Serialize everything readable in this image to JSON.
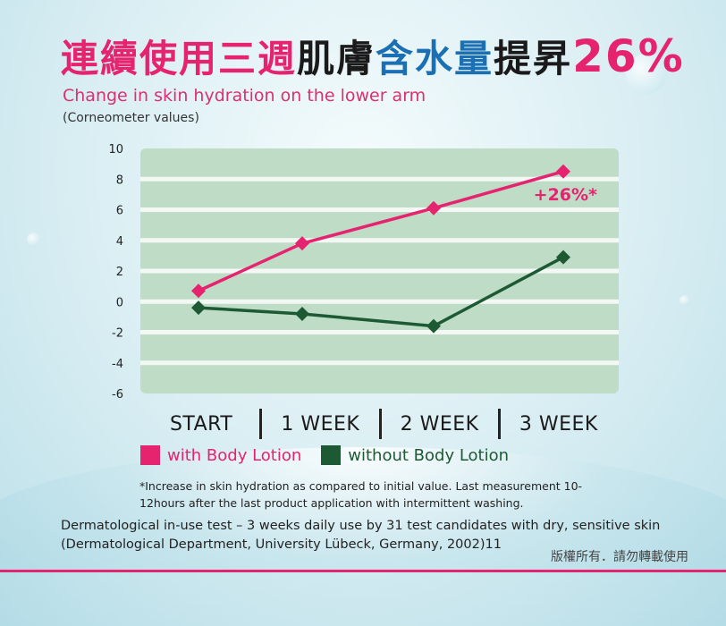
{
  "headline": {
    "part_pink": "連續使用三週",
    "part_dark1": "肌膚",
    "part_blue": "含水量",
    "part_dark2": "提昇",
    "part_pct": "26%"
  },
  "subtitle": "Change in skin hydration on the lower arm",
  "subnote": "(Corneometer values)",
  "colors": {
    "pink": "#e5236f",
    "green": "#1d5a34",
    "plot_band": "#bfdcc7",
    "plot_stripe": "#f4f8f4"
  },
  "chart_data": {
    "type": "line",
    "categories": [
      "START",
      "1 WEEK",
      "2 WEEK",
      "3 WEEK"
    ],
    "ylim": [
      -6,
      10
    ],
    "yticks": [
      "10",
      "8",
      "6",
      "4",
      "2",
      "0",
      "-2",
      "-4",
      "-6"
    ],
    "grid": true,
    "series": [
      {
        "name": "with Body Lotion",
        "color": "#e5236f",
        "values": [
          0.7,
          3.8,
          6.1,
          8.5
        ]
      },
      {
        "name": "without Body Lotion",
        "color": "#1d5a34",
        "values": [
          -0.4,
          -0.8,
          -1.6,
          2.9
        ]
      }
    ],
    "annotation": "+26%*"
  },
  "legend_title_note": "*Increase in skin hydration as compared to initial value. Last measurement 10-12hours after the last product application with intermittent washing.",
  "source": "Dermatological in-use test – 3 weeks daily use by 31 test candidates with dry, sensitive skin (Dermatological Department, University Lübeck, Germany, 2002)11",
  "copyright": "版權所有．請勿轉載使用"
}
